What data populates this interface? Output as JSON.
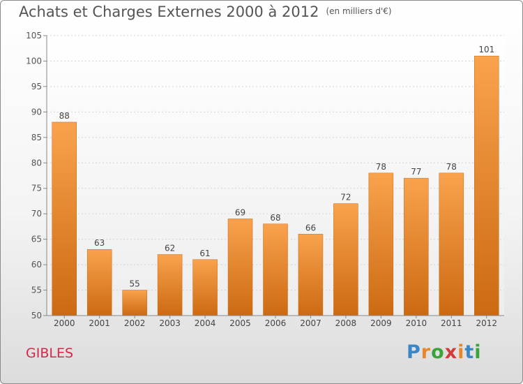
{
  "header": {
    "title": "Achats et Charges Externes 2000 à 2012",
    "unit_note": "(en milliers d'€)"
  },
  "footer": {
    "city": "GIBLES",
    "brand": {
      "letters": [
        "P",
        "r",
        "o",
        "x",
        "i",
        "t",
        "i"
      ],
      "colors": [
        "#3a86c8",
        "#e8872a",
        "#3aa33a",
        "#d33a3a",
        "#e8872a",
        "#3a86c8",
        "#3aa33a"
      ]
    }
  },
  "chart_data": {
    "type": "bar",
    "title": "Achats et Charges Externes 2000 à 2012",
    "categories": [
      "2000",
      "2001",
      "2002",
      "2003",
      "2004",
      "2005",
      "2006",
      "2007",
      "2008",
      "2009",
      "2010",
      "2011",
      "2012"
    ],
    "values": [
      88,
      63,
      55,
      62,
      61,
      69,
      68,
      66,
      72,
      78,
      77,
      78,
      101
    ],
    "ylim": [
      50,
      105
    ],
    "yticks": [
      50,
      55,
      60,
      65,
      70,
      75,
      80,
      85,
      90,
      95,
      100,
      105
    ],
    "grid": true,
    "bar_color_top": "#f9a24d",
    "bar_color_bottom": "#cc6a12"
  }
}
